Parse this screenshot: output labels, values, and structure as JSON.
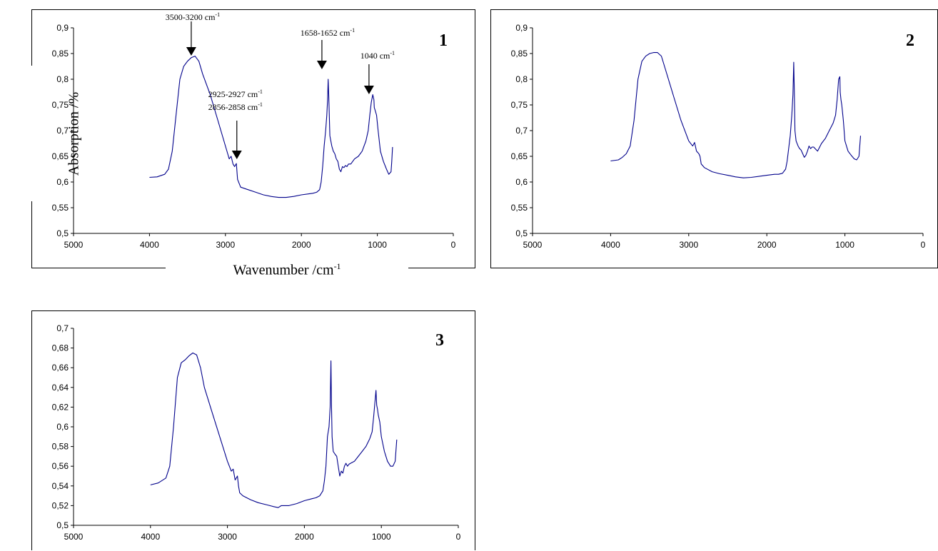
{
  "figure": {
    "ylabel": "Absorption /%",
    "xlabel_main": "Wavenumber /cm",
    "xlabel_sup": "-1"
  },
  "chart_data": [
    {
      "type": "line",
      "panel_label": "1",
      "xlim": [
        5000,
        0
      ],
      "ylim": [
        0.5,
        0.9
      ],
      "x_ticks": [
        "5000",
        "4000",
        "3000",
        "2000",
        "1000",
        "0"
      ],
      "y_ticks": [
        "0,5",
        "0,55",
        "0,6",
        "0,65",
        "0,7",
        "0,75",
        "0,8",
        "0,85",
        "0,9"
      ],
      "line_color": "#00008b",
      "series": [
        {
          "x": [
            4000,
            3900,
            3800,
            3750,
            3700,
            3650,
            3600,
            3550,
            3500,
            3450,
            3400,
            3350,
            3300,
            3200,
            3100,
            3000,
            2950,
            2925,
            2900,
            2880,
            2856,
            2840,
            2800,
            2700,
            2600,
            2500,
            2400,
            2300,
            2200,
            2100,
            2000,
            1900,
            1850,
            1800,
            1760,
            1740,
            1720,
            1700,
            1680,
            1665,
            1655,
            1648,
            1640,
            1625,
            1600,
            1580,
            1560,
            1540,
            1520,
            1500,
            1480,
            1460,
            1440,
            1420,
            1400,
            1380,
            1350,
            1300,
            1250,
            1200,
            1150,
            1120,
            1100,
            1080,
            1060,
            1045,
            1040,
            1030,
            1010,
            990,
            960,
            920,
            880,
            850,
            820,
            810,
            800
          ],
          "y": [
            0.609,
            0.61,
            0.615,
            0.625,
            0.66,
            0.73,
            0.8,
            0.825,
            0.835,
            0.842,
            0.845,
            0.835,
            0.81,
            0.77,
            0.72,
            0.67,
            0.645,
            0.65,
            0.635,
            0.63,
            0.636,
            0.605,
            0.59,
            0.585,
            0.58,
            0.575,
            0.572,
            0.57,
            0.57,
            0.572,
            0.575,
            0.577,
            0.578,
            0.58,
            0.585,
            0.6,
            0.63,
            0.67,
            0.7,
            0.73,
            0.76,
            0.8,
            0.77,
            0.69,
            0.67,
            0.66,
            0.655,
            0.645,
            0.64,
            0.625,
            0.62,
            0.63,
            0.628,
            0.632,
            0.63,
            0.635,
            0.635,
            0.645,
            0.65,
            0.66,
            0.68,
            0.7,
            0.73,
            0.755,
            0.77,
            0.76,
            0.745,
            0.74,
            0.73,
            0.7,
            0.66,
            0.64,
            0.625,
            0.615,
            0.62,
            0.64,
            0.668
          ]
        }
      ],
      "annotations": [
        {
          "text": "3500-3200 cm",
          "sup": "-1",
          "x": 3450
        },
        {
          "text": "2925-2927 cm",
          "sup": "-1",
          "x": 2850
        },
        {
          "text": "2856-2858 cm",
          "sup": "-1"
        },
        {
          "text": "1658-1652 cm",
          "sup": "-1",
          "x": 1730
        },
        {
          "text": "1040 cm",
          "sup": "-1",
          "x": 1110
        }
      ]
    },
    {
      "type": "line",
      "panel_label": "2",
      "xlim": [
        5000,
        0
      ],
      "ylim": [
        0.5,
        0.9
      ],
      "x_ticks": [
        "5000",
        "4000",
        "3000",
        "2000",
        "1000",
        "0"
      ],
      "y_ticks": [
        "0,5",
        "0,55",
        "0,6",
        "0,65",
        "0,7",
        "0,75",
        "0,8",
        "0,85",
        "0,9"
      ],
      "line_color": "#00008b",
      "series": [
        {
          "x": [
            4000,
            3900,
            3850,
            3800,
            3750,
            3700,
            3650,
            3600,
            3550,
            3500,
            3450,
            3400,
            3350,
            3300,
            3200,
            3100,
            3000,
            2950,
            2925,
            2900,
            2870,
            2856,
            2840,
            2800,
            2700,
            2600,
            2500,
            2400,
            2300,
            2200,
            2100,
            2000,
            1900,
            1850,
            1800,
            1760,
            1740,
            1720,
            1700,
            1680,
            1665,
            1655,
            1648,
            1640,
            1625,
            1600,
            1580,
            1560,
            1540,
            1520,
            1500,
            1480,
            1460,
            1440,
            1420,
            1400,
            1350,
            1300,
            1250,
            1200,
            1150,
            1120,
            1100,
            1080,
            1065,
            1060,
            1050,
            1040,
            1020,
            1000,
            960,
            920,
            880,
            850,
            820,
            800
          ],
          "y": [
            0.641,
            0.643,
            0.648,
            0.655,
            0.67,
            0.72,
            0.8,
            0.835,
            0.845,
            0.85,
            0.852,
            0.852,
            0.845,
            0.82,
            0.77,
            0.72,
            0.68,
            0.67,
            0.677,
            0.66,
            0.655,
            0.65,
            0.635,
            0.628,
            0.62,
            0.616,
            0.613,
            0.61,
            0.608,
            0.609,
            0.611,
            0.613,
            0.615,
            0.615,
            0.617,
            0.625,
            0.64,
            0.665,
            0.69,
            0.73,
            0.77,
            0.833,
            0.78,
            0.7,
            0.68,
            0.67,
            0.665,
            0.662,
            0.655,
            0.648,
            0.652,
            0.66,
            0.67,
            0.665,
            0.668,
            0.668,
            0.66,
            0.675,
            0.685,
            0.7,
            0.715,
            0.73,
            0.76,
            0.8,
            0.805,
            0.775,
            0.76,
            0.75,
            0.72,
            0.68,
            0.66,
            0.652,
            0.645,
            0.643,
            0.65,
            0.69
          ]
        }
      ]
    },
    {
      "type": "line",
      "panel_label": "3",
      "xlim": [
        5000,
        0
      ],
      "ylim": [
        0.5,
        0.7
      ],
      "x_ticks": [
        "5000",
        "4000",
        "3000",
        "2000",
        "1000",
        "0"
      ],
      "y_ticks": [
        "0,5",
        "0,52",
        "0,54",
        "0,56",
        "0,58",
        "0,6",
        "0,62",
        "0,64",
        "0,66",
        "0,68",
        "0,7"
      ],
      "line_color": "#00008b",
      "series": [
        {
          "x": [
            4000,
            3900,
            3800,
            3750,
            3700,
            3650,
            3600,
            3550,
            3500,
            3450,
            3400,
            3350,
            3300,
            3200,
            3100,
            3000,
            2950,
            2925,
            2900,
            2870,
            2856,
            2840,
            2800,
            2700,
            2600,
            2500,
            2400,
            2340,
            2300,
            2200,
            2100,
            2000,
            1900,
            1850,
            1800,
            1760,
            1740,
            1720,
            1700,
            1680,
            1665,
            1655,
            1648,
            1640,
            1625,
            1600,
            1580,
            1560,
            1540,
            1520,
            1500,
            1480,
            1460,
            1440,
            1420,
            1400,
            1350,
            1300,
            1250,
            1200,
            1150,
            1120,
            1100,
            1080,
            1070,
            1060,
            1050,
            1040,
            1020,
            1000,
            960,
            920,
            880,
            850,
            820,
            800
          ],
          "y": [
            0.541,
            0.543,
            0.548,
            0.56,
            0.6,
            0.65,
            0.665,
            0.668,
            0.672,
            0.675,
            0.673,
            0.66,
            0.64,
            0.615,
            0.59,
            0.565,
            0.555,
            0.557,
            0.546,
            0.55,
            0.54,
            0.533,
            0.53,
            0.526,
            0.523,
            0.521,
            0.519,
            0.518,
            0.52,
            0.52,
            0.522,
            0.525,
            0.527,
            0.528,
            0.53,
            0.535,
            0.545,
            0.56,
            0.59,
            0.6,
            0.62,
            0.667,
            0.625,
            0.59,
            0.575,
            0.572,
            0.57,
            0.56,
            0.55,
            0.555,
            0.553,
            0.56,
            0.563,
            0.56,
            0.562,
            0.563,
            0.565,
            0.57,
            0.575,
            0.58,
            0.588,
            0.595,
            0.61,
            0.628,
            0.637,
            0.622,
            0.618,
            0.612,
            0.605,
            0.59,
            0.575,
            0.565,
            0.56,
            0.56,
            0.565,
            0.587
          ]
        }
      ]
    }
  ]
}
